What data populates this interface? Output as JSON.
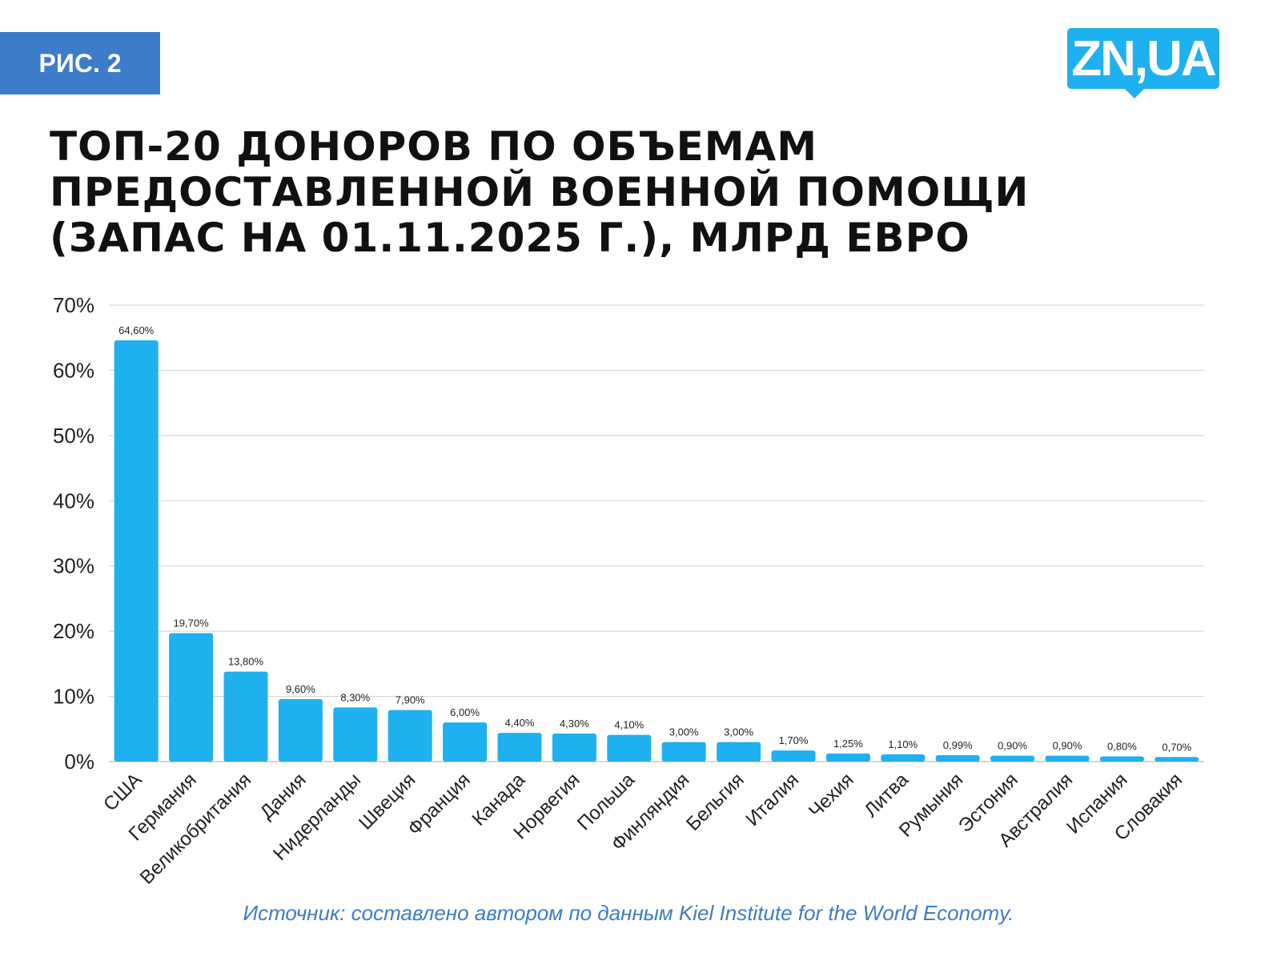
{
  "badge": "РИС. 2",
  "logo": "ZN,UA",
  "source": "Источник: составлено автором по данным Kiel Institute for the World Economy.",
  "colors": {
    "bar": "#1fb0ef",
    "badge": "#3d7cc9",
    "grid": "#d0d0d0"
  },
  "chart_data": {
    "type": "bar",
    "title": "ТОП-20 ДОНОРОВ ПО ОБЪЕМАМ ПРЕДОСТАВЛЕННОЙ ВОЕННОЙ ПОМОЩИ (ЗАПАС НА 01.11.2025 Г.), МЛРД ЕВРО",
    "xlabel": "",
    "ylabel": "",
    "ylim": [
      0,
      70
    ],
    "yticks": [
      "0%",
      "10%",
      "20%",
      "30%",
      "40%",
      "50%",
      "60%",
      "70%"
    ],
    "grid": true,
    "categories": [
      "США",
      "Германия",
      "Великобритания",
      "Дания",
      "Нидерланды",
      "Швеция",
      "Франция",
      "Канада",
      "Норвегия",
      "Польша",
      "Финляндия",
      "Бельгия",
      "Италия",
      "Чехия",
      "Литва",
      "Румыния",
      "Эстония",
      "Австралия",
      "Испания",
      "Словакия"
    ],
    "values": [
      64.6,
      19.7,
      13.8,
      9.6,
      8.3,
      7.9,
      6.0,
      4.4,
      4.3,
      4.1,
      3.0,
      3.0,
      1.7,
      1.25,
      1.1,
      0.99,
      0.9,
      0.9,
      0.8,
      0.7
    ],
    "labels": [
      "64,60%",
      "19,70%",
      "13,80%",
      "9,60%",
      "8,30%",
      "7,90%",
      "6,00%",
      "4,40%",
      "4,30%",
      "4,10%",
      "3,00%",
      "3,00%",
      "1,70%",
      "1,25%",
      "1,10%",
      "0,99%",
      "0,90%",
      "0,90%",
      "0,80%",
      "0,70%"
    ]
  }
}
